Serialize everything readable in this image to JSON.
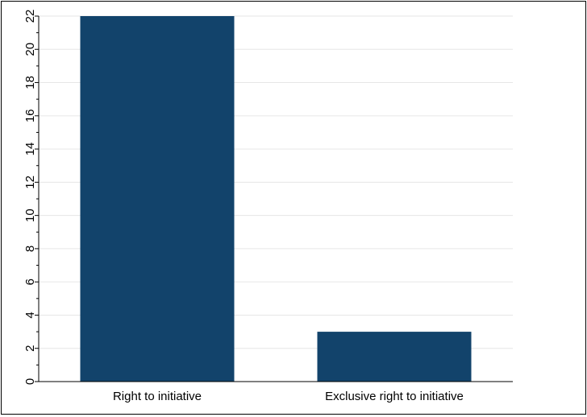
{
  "chart_data": {
    "type": "bar",
    "title": "",
    "xlabel": "",
    "ylabel": "",
    "categories": [
      "Right to initiative",
      "Exclusive right to initiative"
    ],
    "values": [
      22,
      3
    ],
    "ylim": [
      0,
      22
    ],
    "yticks": [
      0,
      2,
      4,
      6,
      8,
      10,
      12,
      14,
      16,
      18,
      20,
      22
    ],
    "grid": true,
    "legend": "none",
    "bar_color": "#12436b",
    "grid_color": "#e6e6e6"
  }
}
